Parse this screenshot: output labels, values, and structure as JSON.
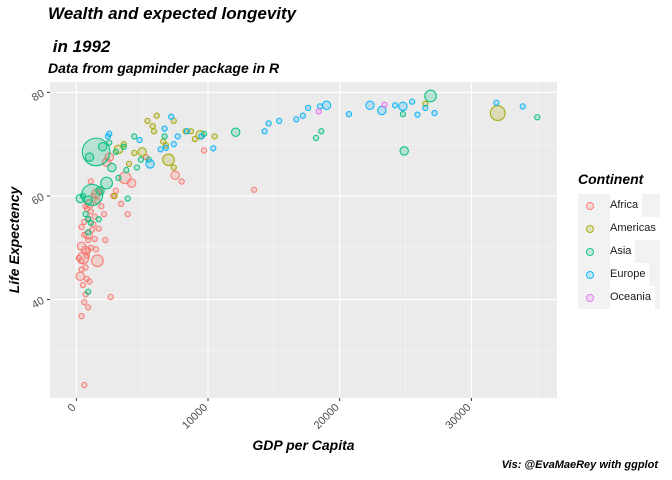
{
  "chart_data": {
    "type": "scatter",
    "title_line1": "Wealth and expected longevity",
    "title_line2": " in 1992",
    "subtitle": "Data from gapminder package in R",
    "caption": "Vis: @EvaMaeRey with ggplot",
    "xlabel": "GDP per Capita",
    "ylabel": "Life Expectency",
    "xlim": [
      -2000,
      36500
    ],
    "ylim": [
      21,
      82
    ],
    "x_ticks": [
      0,
      10000,
      20000,
      30000
    ],
    "x_tick_labels": [
      "0",
      "10000",
      "20000",
      "30000"
    ],
    "y_ticks": [
      40,
      60,
      80
    ],
    "y_tick_labels": [
      "40",
      "60",
      "80"
    ],
    "grid": true,
    "legend_title": "Continent",
    "legend_position": "right",
    "legend": [
      {
        "name": "Africa",
        "color": "#F8766D"
      },
      {
        "name": "Americas",
        "color": "#A3A500"
      },
      {
        "name": "Asia",
        "color": "#00BF7D"
      },
      {
        "name": "Europe",
        "color": "#00B0F6"
      },
      {
        "name": "Oceania",
        "color": "#E76BF3"
      }
    ],
    "series": [
      {
        "name": "Africa",
        "color": "#F8766D",
        "points": [
          [
            2300,
            66.5,
            2
          ],
          [
            2500,
            67.5,
            2
          ],
          [
            3700,
            63.5,
            3
          ],
          [
            4200,
            62.5,
            2
          ],
          [
            3400,
            58.5,
            1
          ],
          [
            3900,
            56.5,
            1
          ],
          [
            7500,
            64,
            2
          ],
          [
            8000,
            62.8,
            1
          ],
          [
            9700,
            68.8,
            1
          ],
          [
            13500,
            61.2,
            1
          ],
          [
            5300,
            67.5,
            1
          ],
          [
            1100,
            62.8,
            1
          ],
          [
            1500,
            60.5,
            2
          ],
          [
            1000,
            58.5,
            2
          ],
          [
            700,
            58,
            1
          ],
          [
            1600,
            59,
            1
          ],
          [
            2100,
            56.5,
            1
          ],
          [
            1400,
            56,
            1
          ],
          [
            900,
            55.7,
            1
          ],
          [
            1200,
            53.5,
            1
          ],
          [
            900,
            52.5,
            2
          ],
          [
            1700,
            53.7,
            1
          ],
          [
            600,
            52.5,
            1
          ],
          [
            900,
            51.5,
            1
          ],
          [
            1400,
            51.7,
            1
          ],
          [
            2200,
            51.5,
            1
          ],
          [
            400,
            50.3,
            2
          ],
          [
            700,
            49.5,
            2
          ],
          [
            900,
            49.5,
            1
          ],
          [
            500,
            48,
            3
          ],
          [
            800,
            48.5,
            1
          ],
          [
            1600,
            47.5,
            3
          ],
          [
            400,
            47.5,
            1
          ],
          [
            700,
            46.2,
            1
          ],
          [
            400,
            45.8,
            1
          ],
          [
            300,
            44.5,
            2
          ],
          [
            800,
            44,
            1
          ],
          [
            500,
            42.8,
            1
          ],
          [
            1000,
            43.5,
            1
          ],
          [
            700,
            41,
            1
          ],
          [
            2600,
            40.5,
            1
          ],
          [
            600,
            39.5,
            1
          ],
          [
            900,
            38.5,
            1
          ],
          [
            400,
            36.8,
            1
          ],
          [
            600,
            23.5,
            1
          ],
          [
            200,
            48,
            1
          ],
          [
            1300,
            60,
            1
          ],
          [
            1800,
            61,
            1
          ],
          [
            2800,
            60,
            1
          ],
          [
            600,
            55,
            1
          ],
          [
            1100,
            50,
            1
          ],
          [
            1500,
            49.7,
            1
          ],
          [
            1100,
            57,
            1
          ],
          [
            1900,
            58,
            1
          ],
          [
            800,
            57.5,
            1
          ],
          [
            1300,
            54.5,
            1
          ],
          [
            3000,
            61,
            1
          ],
          [
            400,
            54,
            1
          ]
        ]
      },
      {
        "name": "Americas",
        "color": "#A3A500",
        "points": [
          [
            6100,
            75.5,
            1
          ],
          [
            5400,
            74.5,
            1
          ],
          [
            7400,
            74.5,
            1
          ],
          [
            8300,
            72.5,
            1
          ],
          [
            9400,
            71.8,
            2
          ],
          [
            10500,
            71.5,
            1
          ],
          [
            7000,
            67,
            3
          ],
          [
            4400,
            68.3,
            1
          ],
          [
            3600,
            70,
            1
          ],
          [
            6600,
            70.5,
            1
          ],
          [
            4000,
            66.2,
            1
          ],
          [
            3200,
            69,
            2
          ],
          [
            2900,
            60,
            1
          ],
          [
            5900,
            72.5,
            1
          ],
          [
            5000,
            68.5,
            2
          ],
          [
            26500,
            77.8,
            1
          ],
          [
            32000,
            76,
            4
          ],
          [
            9000,
            71,
            1
          ],
          [
            6800,
            69.8,
            1
          ],
          [
            8700,
            72.5,
            1
          ],
          [
            5800,
            73.5,
            1
          ],
          [
            7400,
            65.5,
            1
          ]
        ]
      },
      {
        "name": "Asia",
        "color": "#00BF7D",
        "points": [
          [
            1500,
            68.5,
            8
          ],
          [
            1200,
            60.2,
            6
          ],
          [
            2300,
            62.5,
            3
          ],
          [
            1800,
            61,
            2
          ],
          [
            2700,
            65.5,
            2
          ],
          [
            900,
            59.2,
            2
          ],
          [
            500,
            60,
            1
          ],
          [
            900,
            55.5,
            1
          ],
          [
            700,
            56.5,
            1
          ],
          [
            1100,
            54.8,
            1
          ],
          [
            900,
            53,
            1
          ],
          [
            1700,
            55.5,
            1
          ],
          [
            300,
            59.5,
            2
          ],
          [
            1000,
            67.5,
            2
          ],
          [
            2000,
            69.5,
            2
          ],
          [
            3000,
            68.5,
            1
          ],
          [
            3600,
            69.5,
            1
          ],
          [
            4600,
            65.5,
            1
          ],
          [
            3900,
            59.5,
            1
          ],
          [
            3200,
            63.5,
            1
          ],
          [
            2500,
            70.3,
            1
          ],
          [
            4400,
            71.5,
            1
          ],
          [
            4900,
            67,
            1
          ],
          [
            6700,
            71.5,
            1
          ],
          [
            9700,
            72,
            1
          ],
          [
            12100,
            72.3,
            2
          ],
          [
            18200,
            71.2,
            1
          ],
          [
            18600,
            72.5,
            1
          ],
          [
            24800,
            75.8,
            1
          ],
          [
            24900,
            68.7,
            2
          ],
          [
            26900,
            79.3,
            3
          ],
          [
            35000,
            75.2,
            1
          ],
          [
            900,
            41.5,
            1
          ],
          [
            3800,
            65,
            1
          ],
          [
            5500,
            67,
            1
          ]
        ]
      },
      {
        "name": "Europe",
        "color": "#00B0F6",
        "points": [
          [
            2400,
            71.5,
            1
          ],
          [
            2500,
            72,
            1
          ],
          [
            4800,
            70.8,
            1
          ],
          [
            5600,
            66.2,
            2
          ],
          [
            6400,
            69,
            1
          ],
          [
            6800,
            69.3,
            1
          ],
          [
            7200,
            75.3,
            1
          ],
          [
            6700,
            73,
            1
          ],
          [
            7400,
            70,
            1
          ],
          [
            7700,
            71.5,
            1
          ],
          [
            8400,
            72.5,
            1
          ],
          [
            9500,
            71.5,
            1
          ],
          [
            10400,
            69.2,
            1
          ],
          [
            14300,
            72.5,
            1
          ],
          [
            14600,
            74,
            1
          ],
          [
            15400,
            74.5,
            1
          ],
          [
            16700,
            74.8,
            1
          ],
          [
            17600,
            77,
            1
          ],
          [
            18500,
            77.3,
            1
          ],
          [
            19000,
            77.5,
            2
          ],
          [
            20700,
            75.8,
            1
          ],
          [
            22300,
            77.5,
            2
          ],
          [
            23200,
            76.5,
            2
          ],
          [
            24200,
            77.5,
            1
          ],
          [
            24800,
            77.3,
            2
          ],
          [
            25500,
            78.2,
            1
          ],
          [
            25900,
            75.7,
            1
          ],
          [
            26500,
            77,
            1
          ],
          [
            27200,
            76,
            1
          ],
          [
            31900,
            78,
            1
          ],
          [
            33900,
            77.3,
            1
          ],
          [
            17200,
            75.5,
            1
          ]
        ]
      },
      {
        "name": "Oceania",
        "color": "#E76BF3",
        "points": [
          [
            18400,
            76.3,
            1
          ],
          [
            23400,
            77.6,
            1
          ]
        ]
      }
    ]
  }
}
